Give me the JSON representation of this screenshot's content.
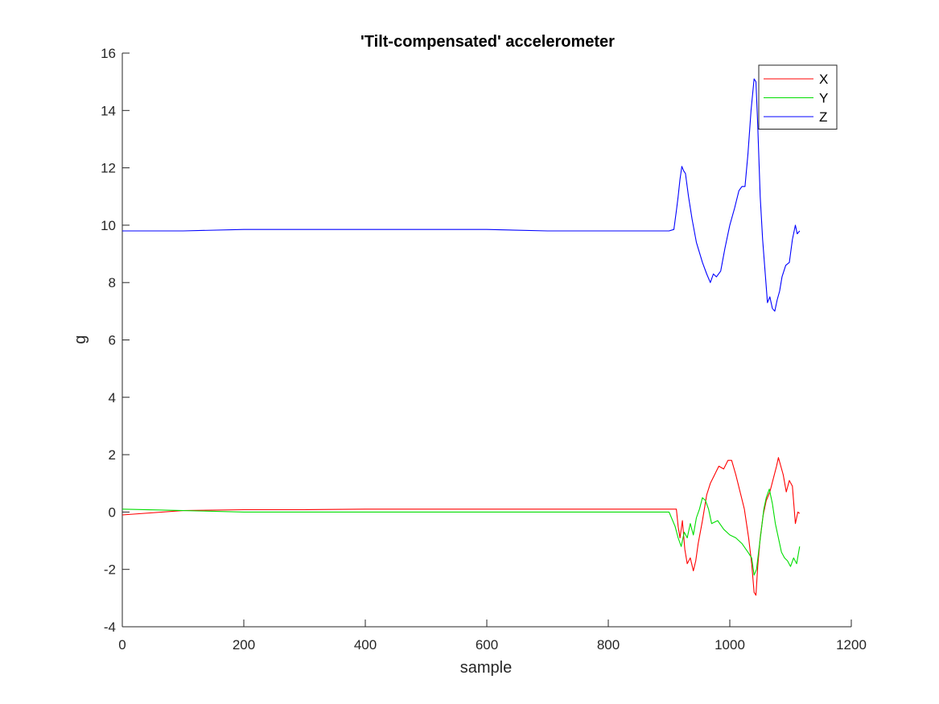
{
  "chart_data": {
    "type": "line",
    "title": "'Tilt-compensated' accelerometer",
    "xlabel": "sample",
    "ylabel": "g",
    "xlim": [
      0,
      1200
    ],
    "ylim": [
      -4,
      16
    ],
    "xticks": [
      0,
      200,
      400,
      600,
      800,
      1000,
      1200
    ],
    "yticks": [
      -4,
      -2,
      0,
      2,
      4,
      6,
      8,
      10,
      12,
      14,
      16
    ],
    "grid": false,
    "legend_position": "top-right",
    "series": [
      {
        "name": "X",
        "color": "#ff0000",
        "x": [
          0,
          100,
          200,
          300,
          400,
          500,
          600,
          700,
          800,
          900,
          912,
          915,
          918,
          922,
          926,
          930,
          935,
          940,
          944,
          948,
          955,
          962,
          968,
          975,
          982,
          990,
          997,
          1003,
          1010,
          1017,
          1024,
          1031,
          1036,
          1040,
          1043,
          1046,
          1050,
          1055,
          1060,
          1066,
          1072,
          1077,
          1080,
          1084,
          1088,
          1093,
          1098,
          1103,
          1108,
          1112,
          1115
        ],
        "y": [
          -0.1,
          0.05,
          0.08,
          0.08,
          0.1,
          0.1,
          0.1,
          0.1,
          0.1,
          0.1,
          0.1,
          -0.5,
          -0.9,
          -0.3,
          -1.3,
          -1.8,
          -1.6,
          -2.05,
          -1.7,
          -1.1,
          -0.3,
          0.6,
          1.0,
          1.3,
          1.6,
          1.5,
          1.8,
          1.8,
          1.3,
          0.7,
          0.1,
          -0.9,
          -1.8,
          -2.8,
          -2.9,
          -1.9,
          -0.9,
          -0.1,
          0.4,
          0.7,
          1.2,
          1.6,
          1.9,
          1.6,
          1.3,
          0.7,
          1.1,
          0.9,
          -0.4,
          0.0,
          -0.05
        ]
      },
      {
        "name": "Y",
        "color": "#00dd00",
        "x": [
          0,
          100,
          200,
          300,
          400,
          500,
          600,
          700,
          800,
          900,
          910,
          915,
          920,
          925,
          930,
          935,
          940,
          945,
          950,
          955,
          960,
          965,
          970,
          980,
          990,
          1000,
          1010,
          1020,
          1030,
          1036,
          1040,
          1044,
          1048,
          1052,
          1056,
          1060,
          1065,
          1070,
          1075,
          1080,
          1085,
          1090,
          1095,
          1100,
          1105,
          1110,
          1115
        ],
        "y": [
          0.1,
          0.05,
          0.0,
          0.0,
          0.0,
          0.0,
          0.0,
          0.0,
          0.0,
          0.0,
          -0.5,
          -0.9,
          -1.2,
          -0.7,
          -0.9,
          -0.4,
          -0.8,
          -0.2,
          0.1,
          0.5,
          0.4,
          0.1,
          -0.4,
          -0.3,
          -0.6,
          -0.8,
          -0.9,
          -1.1,
          -1.4,
          -1.6,
          -2.2,
          -2.0,
          -1.3,
          -0.6,
          0.1,
          0.5,
          0.8,
          0.3,
          -0.4,
          -0.9,
          -1.4,
          -1.6,
          -1.7,
          -1.9,
          -1.6,
          -1.8,
          -1.2
        ]
      },
      {
        "name": "Z",
        "color": "#0000ff",
        "x": [
          0,
          100,
          200,
          300,
          400,
          500,
          600,
          700,
          800,
          850,
          900,
          908,
          912,
          915,
          918,
          921,
          924,
          927,
          932,
          938,
          945,
          955,
          962,
          968,
          973,
          978,
          985,
          992,
          1000,
          1008,
          1015,
          1020,
          1025,
          1030,
          1035,
          1040,
          1043,
          1046,
          1050,
          1054,
          1058,
          1062,
          1066,
          1070,
          1074,
          1078,
          1082,
          1086,
          1092,
          1098,
          1103,
          1108,
          1111,
          1115
        ],
        "y": [
          9.8,
          9.8,
          9.85,
          9.85,
          9.85,
          9.85,
          9.85,
          9.8,
          9.8,
          9.8,
          9.8,
          9.85,
          10.5,
          11.0,
          11.6,
          12.05,
          11.9,
          11.8,
          11.0,
          10.2,
          9.4,
          8.7,
          8.3,
          8.0,
          8.3,
          8.2,
          8.4,
          9.2,
          10.0,
          10.6,
          11.2,
          11.35,
          11.35,
          12.5,
          14.0,
          15.1,
          15.0,
          13.5,
          11.0,
          9.5,
          8.4,
          7.3,
          7.5,
          7.1,
          7.0,
          7.4,
          7.7,
          8.2,
          8.6,
          8.7,
          9.5,
          10.0,
          9.7,
          9.8
        ]
      }
    ]
  }
}
